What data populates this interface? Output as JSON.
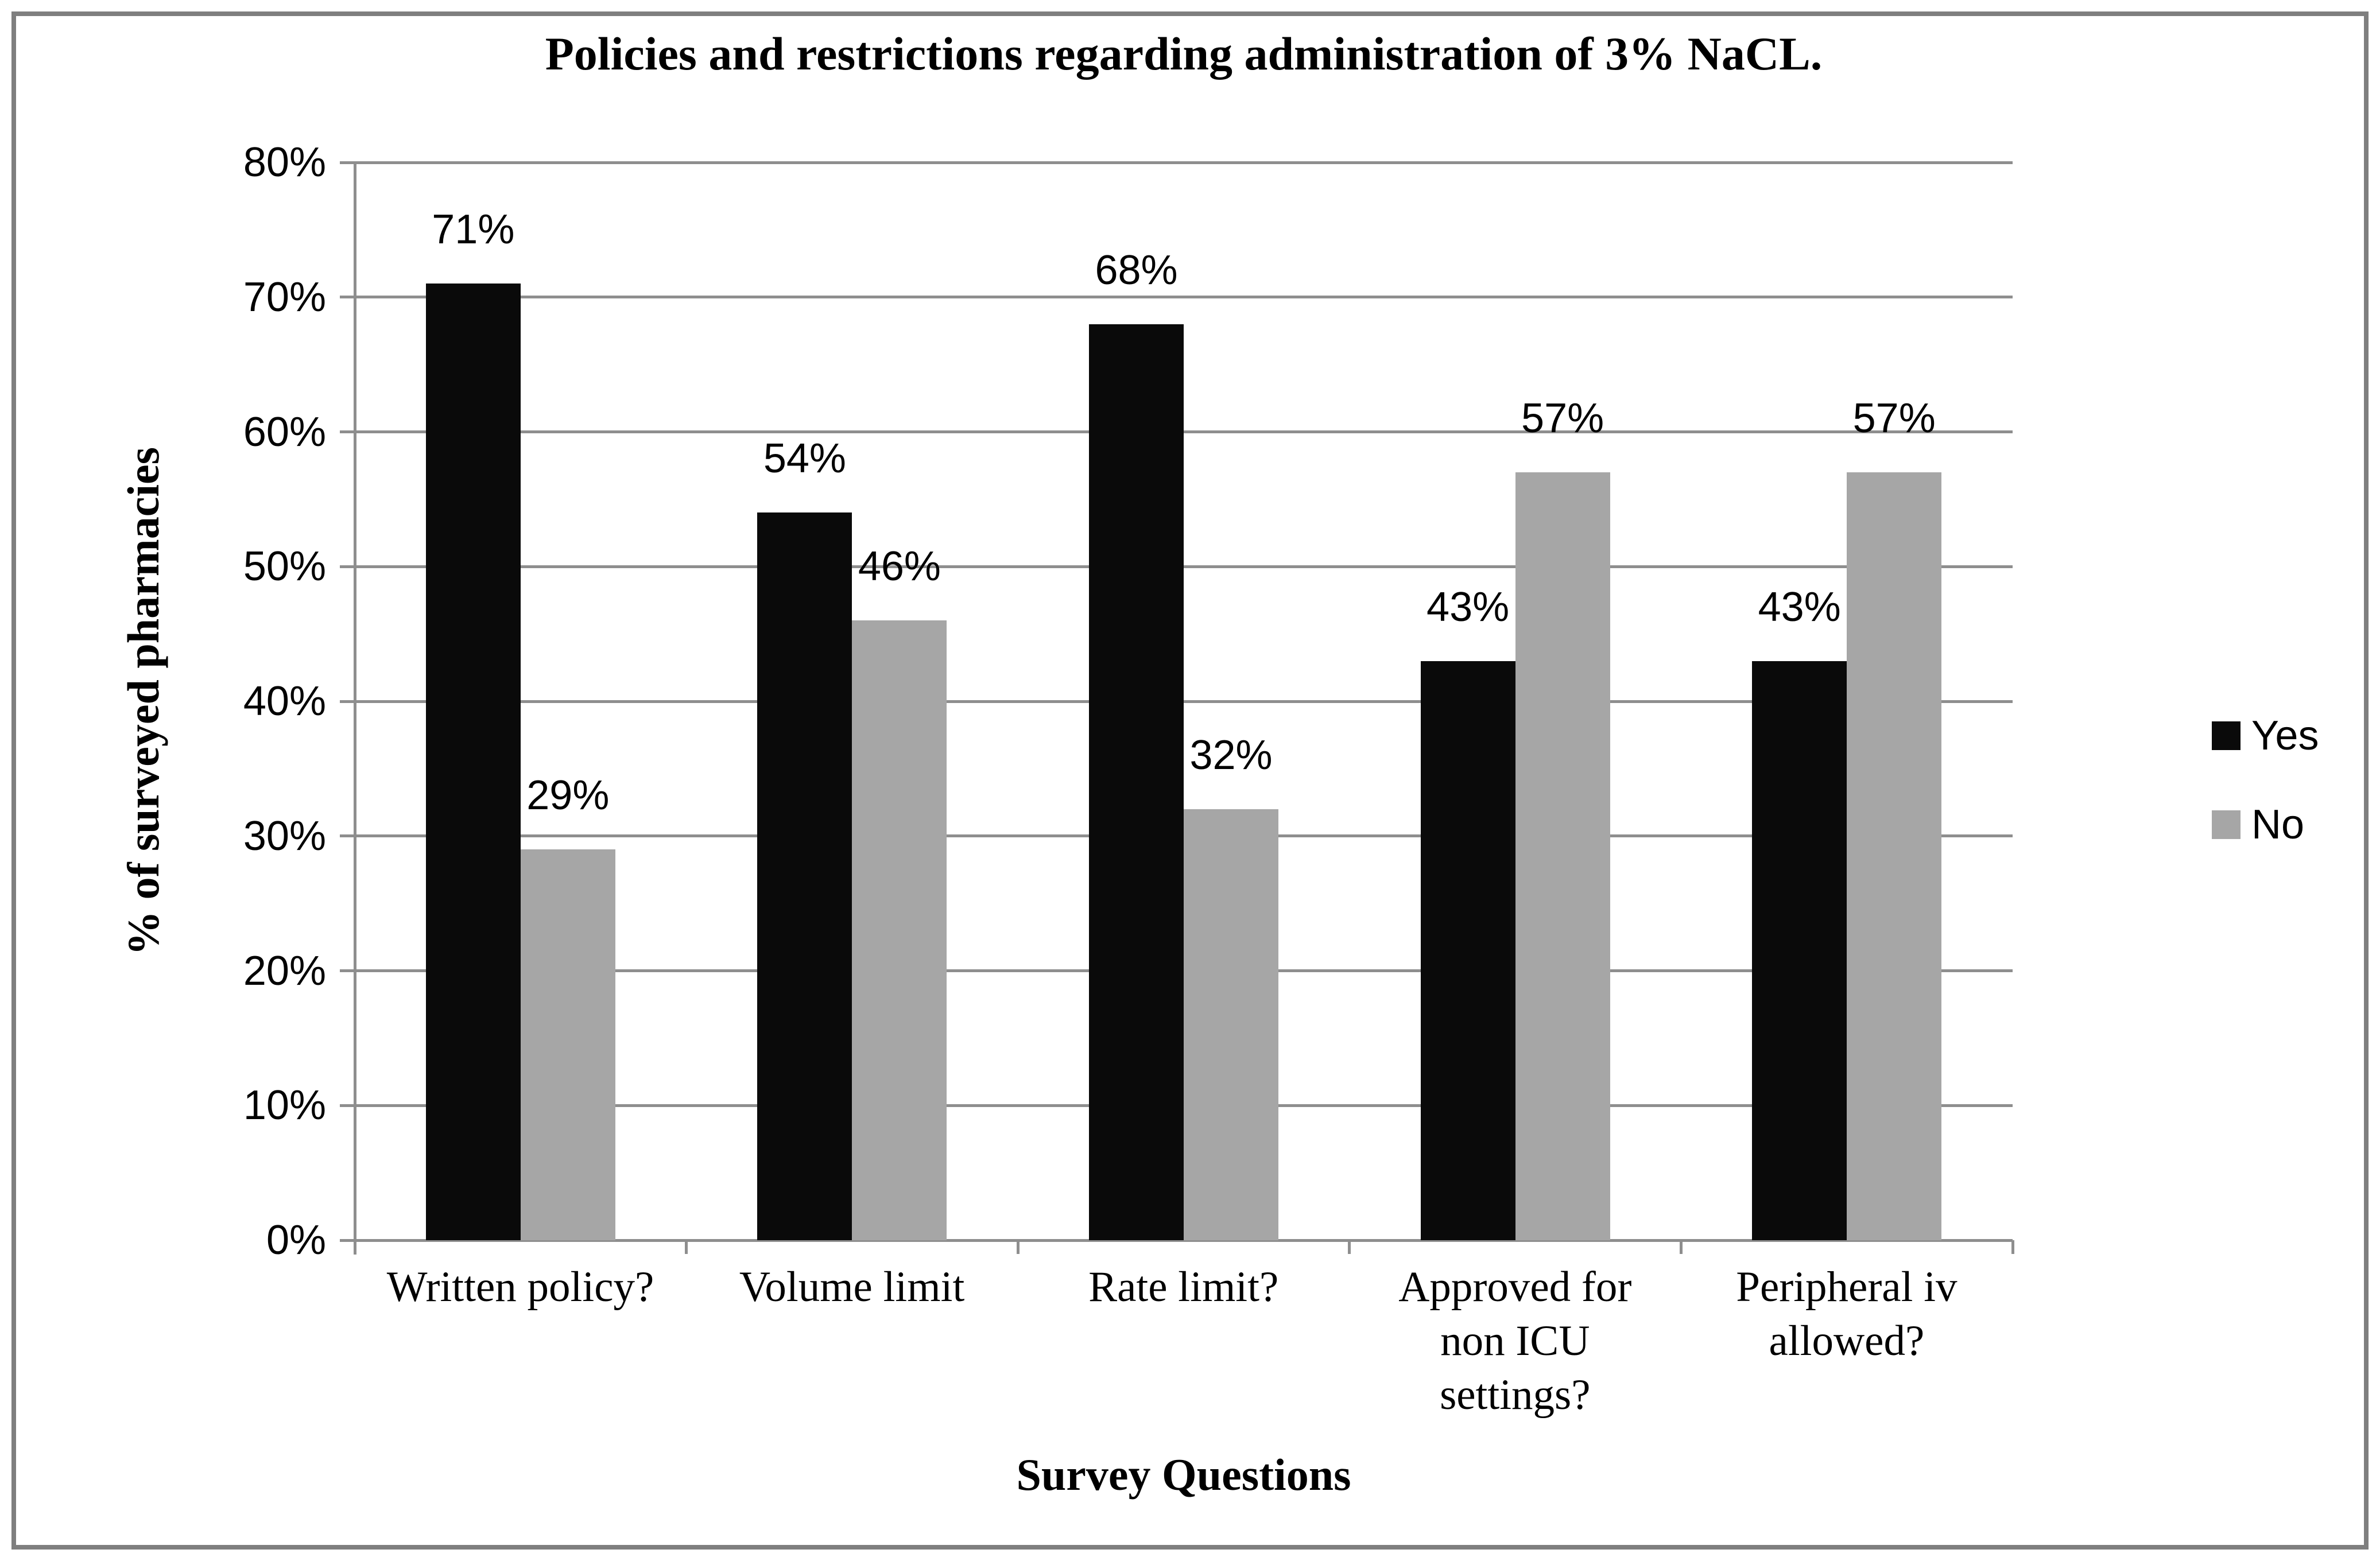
{
  "chart_data": {
    "type": "bar",
    "title": "Policies and restrictions regarding administration of 3% NaCL.",
    "xlabel": "Survey Questions",
    "ylabel": "% of surveyed pharmacies",
    "categories": [
      "Written policy?",
      "Volume limit",
      "Rate limit?",
      "Approved for\nnon ICU\nsettings?",
      "Peripheral iv\nallowed?"
    ],
    "series": [
      {
        "name": "Yes",
        "color": "#0a0a0a",
        "values": [
          71,
          54,
          68,
          43,
          43
        ],
        "data_labels": [
          "71%",
          "54%",
          "68%",
          "43%",
          "43%"
        ]
      },
      {
        "name": "No",
        "color": "#a6a6a6",
        "values": [
          29,
          46,
          32,
          57,
          57
        ],
        "data_labels": [
          "29%",
          "46%",
          "32%",
          "57%",
          "57%"
        ]
      }
    ],
    "y_ticks": [
      "0%",
      "10%",
      "20%",
      "30%",
      "40%",
      "50%",
      "60%",
      "70%",
      "80%"
    ],
    "ylim": [
      0,
      80
    ],
    "grid": true,
    "legend_position": "right",
    "colors": {
      "gridline": "#8e8e8e",
      "axis": "#8e8e8e",
      "frame": "#7f7f7f",
      "text": "#000000"
    }
  }
}
